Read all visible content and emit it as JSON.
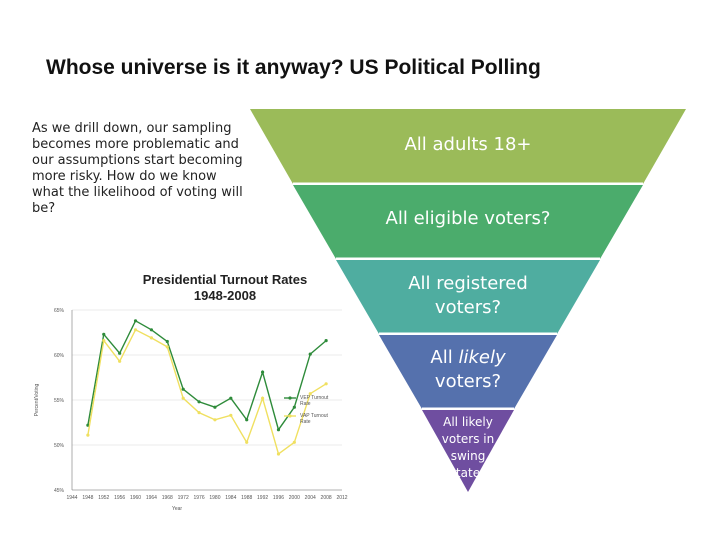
{
  "slide": {
    "title": "Whose universe is it anyway? US Political Polling",
    "body": "As we drill down, our sampling becomes more problematic and our assumptions start becoming more risky. How do we know what the likelihood of voting will be?"
  },
  "funnel": {
    "levels": [
      {
        "label": "All adults 18+",
        "color": "#9bbb59"
      },
      {
        "label": "All eligible voters?",
        "color": "#4bac6c"
      },
      {
        "label": "All registered voters?",
        "color": "#4fada0"
      },
      {
        "label_pre": "All ",
        "label_em": "likely",
        "label_post": " voters?",
        "color": "#5571ad"
      },
      {
        "label": "All likely voters in swing states",
        "color": "#6f4ea0"
      }
    ]
  },
  "chart_data": {
    "type": "line",
    "title": "Presidential Turnout Rates",
    "subtitle": "1948-2008",
    "xlabel": "Year",
    "ylabel": "Percent/Voting",
    "categories": [
      "1944",
      "1948",
      "1952",
      "1956",
      "1960",
      "1964",
      "1968",
      "1972",
      "1976",
      "1980",
      "1984",
      "1988",
      "1992",
      "1996",
      "2000",
      "2004",
      "2008",
      "2012"
    ],
    "ylim": [
      45,
      65
    ],
    "yticks": [
      "65%",
      "60%",
      "55%",
      "50%",
      "45%"
    ],
    "series": [
      {
        "name": "VEP Turnout Rate",
        "color": "#2e8b3a",
        "values": [
          null,
          52.2,
          62.3,
          60.2,
          63.8,
          62.8,
          61.5,
          56.2,
          54.8,
          54.2,
          55.2,
          52.8,
          58.1,
          51.7,
          54.2,
          60.1,
          61.6,
          null
        ]
      },
      {
        "name": "VAP Turnout Rate",
        "color": "#f0e060",
        "values": [
          null,
          51.1,
          61.6,
          59.3,
          62.8,
          61.9,
          60.9,
          55.2,
          53.6,
          52.8,
          53.3,
          50.3,
          55.2,
          49.0,
          50.3,
          55.7,
          56.8,
          null
        ]
      }
    ],
    "legend_position": "bottom-right",
    "grid": true
  }
}
